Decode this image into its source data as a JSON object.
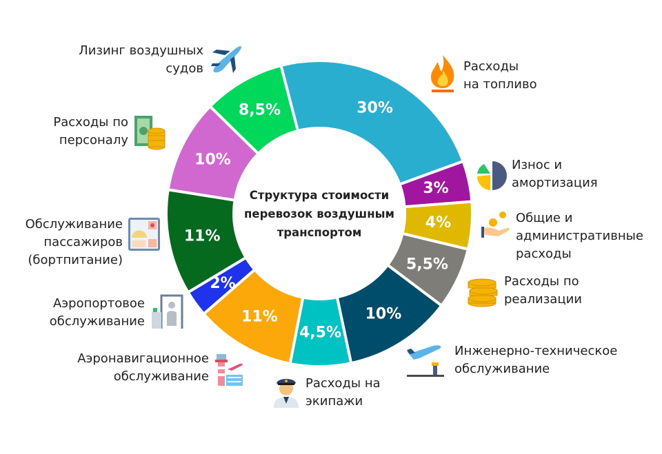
{
  "chart_data": {
    "type": "donut",
    "title": [
      "Структура стоимости",
      "перевозок воздушным",
      "транспортом"
    ],
    "unit": "%",
    "legend": "labels around ring",
    "series": [
      {
        "category": [
          "Расходы",
          "на топливо"
        ],
        "value": 30,
        "value_label": "30%",
        "color": "#29aecf",
        "icon": "fire-icon"
      },
      {
        "category": [
          "Износ и",
          "амортизация"
        ],
        "value": 3,
        "value_label": "3%",
        "color": "#a0169f",
        "icon": "pie-chart-icon"
      },
      {
        "category": [
          "Общие и",
          "административные",
          "расходы"
        ],
        "value": 4,
        "value_label": "4%",
        "color": "#e0b800",
        "icon": "hand-coins-icon"
      },
      {
        "category": [
          "Расходы по",
          "реализации"
        ],
        "value": 5.5,
        "value_label": "5,5%",
        "color": "#7f7d78",
        "icon": "coins-stack-icon"
      },
      {
        "category": [
          "Инженерно-техническое",
          "обслуживание"
        ],
        "value": 10,
        "value_label": "10%",
        "color": "#004d6b",
        "icon": "airplane-tower-icon"
      },
      {
        "category": [
          "Расходы на",
          "экипажи"
        ],
        "value": 4.5,
        "value_label": "4,5%",
        "color": "#00c2c2",
        "icon": "pilot-icon"
      },
      {
        "category": [
          "Аэронавигационное",
          "обслуживание"
        ],
        "value": 11,
        "value_label": "11%",
        "color": "#fca80a",
        "icon": "control-tower-icon"
      },
      {
        "category": [
          "Аэропортовое",
          "обслуживание"
        ],
        "value": 2,
        "value_label": "2%",
        "color": "#1f33ea",
        "icon": "security-gate-icon"
      },
      {
        "category": [
          "Обслуживание",
          "пассажиров",
          "(бортпитание)"
        ],
        "value": 11,
        "value_label": "11%",
        "color": "#05691e",
        "icon": "meal-tray-icon"
      },
      {
        "category": [
          "Расходы по",
          "персоналу"
        ],
        "value": 10,
        "value_label": "10%",
        "color": "#d168d0",
        "icon": "money-coins-icon"
      },
      {
        "category": [
          "Лизинг воздушных",
          "судов"
        ],
        "value": 8.5,
        "value_label": "8,5%",
        "color": "#00d85c",
        "icon": "airplane-icon"
      }
    ]
  }
}
